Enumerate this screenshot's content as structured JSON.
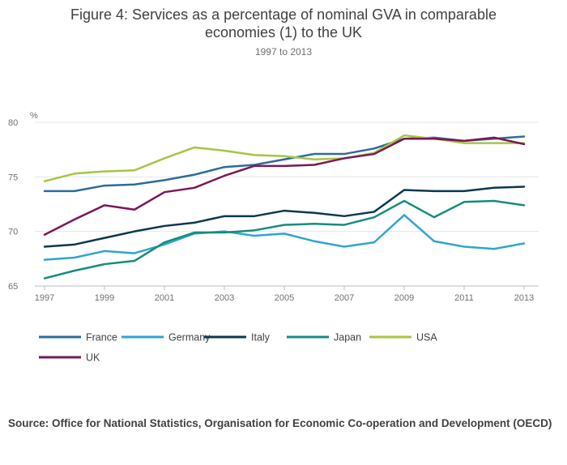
{
  "header": {
    "title_line1": "Figure 4: Services as a percentage of nominal GVA in comparable",
    "title_line2": "economies (1) to the UK",
    "subtitle": "1997 to 2013"
  },
  "source": "Source: Office for National Statistics, Organisation for Economic Co-operation and Development (OECD)",
  "chart_data": {
    "type": "line",
    "title": "Figure 4: Services as a percentage of nominal GVA in comparable economies (1) to the UK",
    "subtitle": "1997 to 2013",
    "ylabel": "%",
    "xlabel": "",
    "ylim": [
      65,
      80
    ],
    "yticks": [
      65,
      70,
      75,
      80
    ],
    "xticks": [
      "1997",
      "1999",
      "2001",
      "2003",
      "2005",
      "2007",
      "2009",
      "2011",
      "2013"
    ],
    "grid": "horizontal",
    "legend_position": "bottom-left",
    "x": [
      1997,
      1998,
      1999,
      2000,
      2001,
      2002,
      2003,
      2004,
      2005,
      2006,
      2007,
      2008,
      2009,
      2010,
      2011,
      2012,
      2013
    ],
    "series": [
      {
        "name": "France",
        "color": "#2e6b9a",
        "values": [
          73.7,
          73.7,
          74.2,
          74.3,
          74.7,
          75.2,
          75.9,
          76.1,
          76.6,
          77.1,
          77.1,
          77.6,
          78.5,
          78.6,
          78.3,
          78.5,
          78.7
        ]
      },
      {
        "name": "Germany",
        "color": "#2fa5cf",
        "values": [
          67.4,
          67.6,
          68.2,
          68.0,
          68.8,
          69.8,
          70.0,
          69.6,
          69.8,
          69.1,
          68.6,
          69.0,
          71.5,
          69.1,
          68.6,
          68.4,
          68.9
        ]
      },
      {
        "name": "Italy",
        "color": "#0b3850",
        "values": [
          68.6,
          68.8,
          69.4,
          70.0,
          70.5,
          70.8,
          71.4,
          71.4,
          71.9,
          71.7,
          71.4,
          71.8,
          73.8,
          73.7,
          73.7,
          74.0,
          74.1
        ]
      },
      {
        "name": "Japan",
        "color": "#178c7c",
        "values": [
          65.7,
          66.4,
          67.0,
          67.3,
          69.0,
          69.9,
          69.9,
          70.1,
          70.6,
          70.7,
          70.6,
          71.3,
          72.8,
          71.3,
          72.7,
          72.8,
          72.4
        ]
      },
      {
        "name": "USA",
        "color": "#a7c543",
        "values": [
          74.6,
          75.3,
          75.5,
          75.6,
          76.7,
          77.7,
          77.4,
          77.0,
          76.9,
          76.6,
          76.7,
          77.2,
          78.8,
          78.5,
          78.1,
          78.1,
          78.1
        ]
      },
      {
        "name": "UK",
        "color": "#7b1756",
        "values": [
          69.7,
          71.1,
          72.4,
          72.0,
          73.6,
          74.0,
          75.1,
          76.0,
          76.0,
          76.1,
          76.7,
          77.1,
          78.5,
          78.5,
          78.3,
          78.6,
          78.0
        ]
      }
    ],
    "axis_color": "#bcbcbd",
    "grid_color": "#e6e6e6"
  }
}
